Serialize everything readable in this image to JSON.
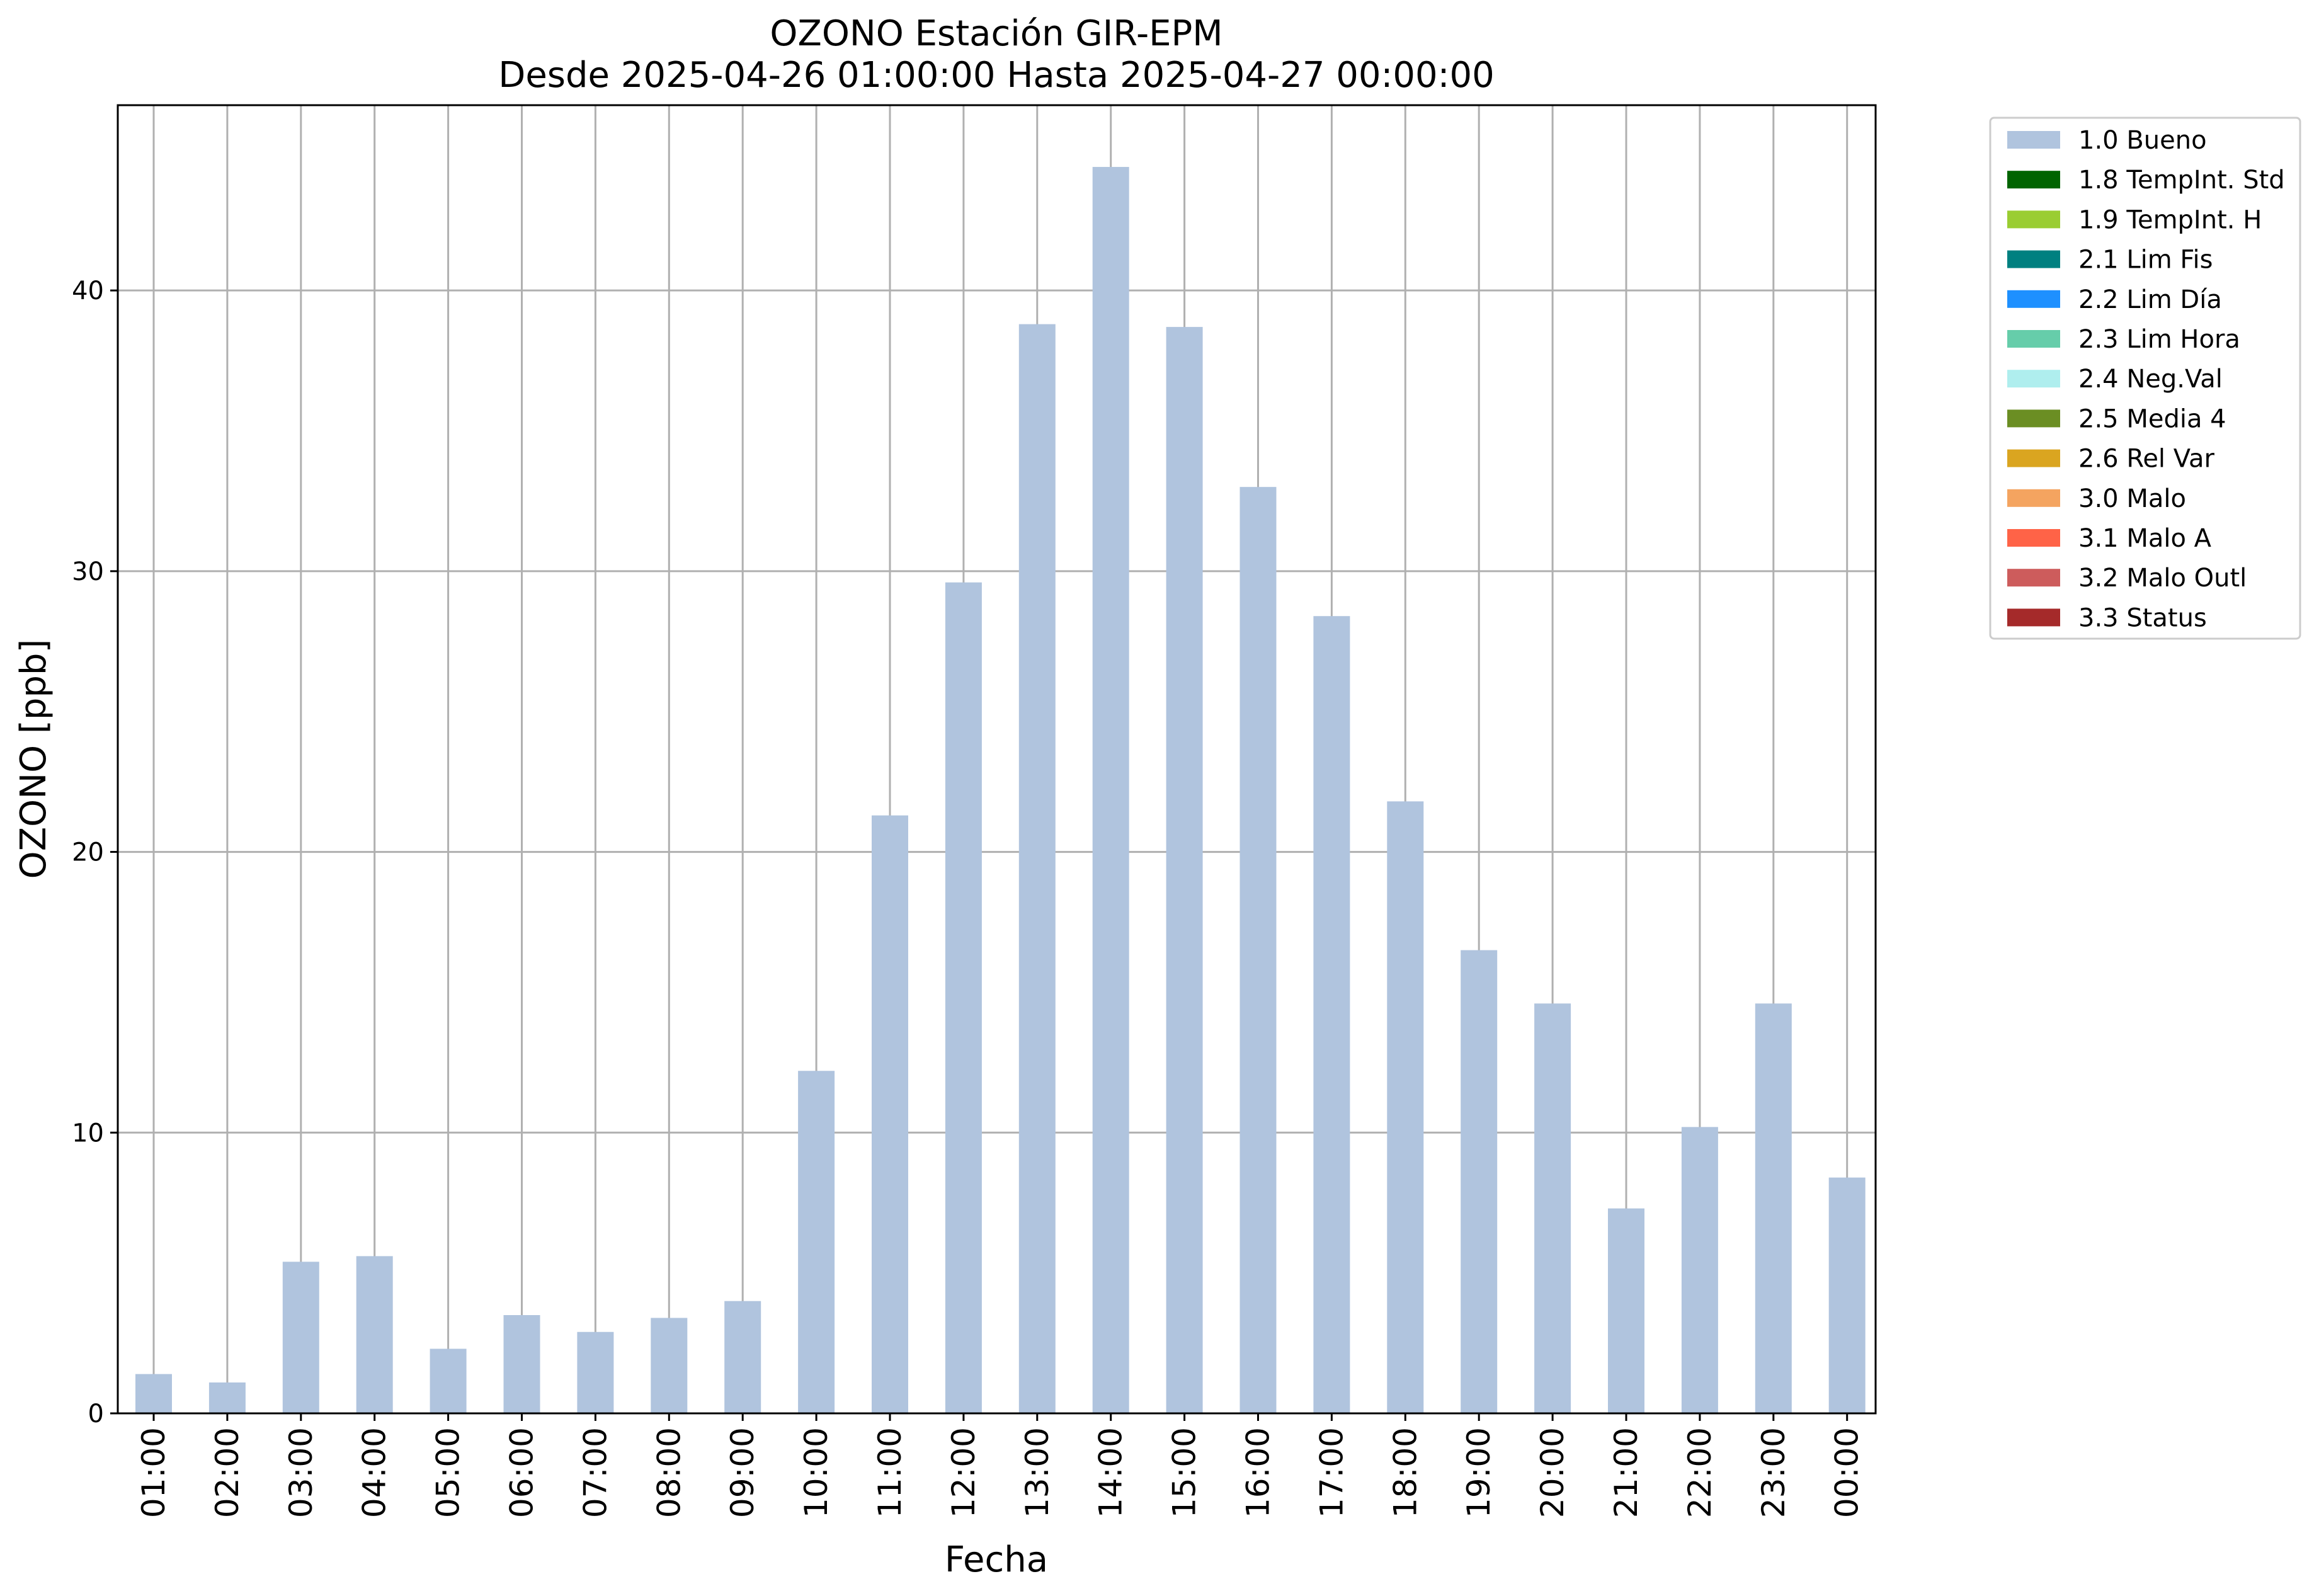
{
  "chart_data": {
    "type": "bar",
    "title": "OZONO Estación GIR-EPM",
    "subtitle": "Desde 2025-04-26 01:00:00 Hasta 2025-04-27 00:00:00",
    "xlabel": "Fecha",
    "ylabel": "OZONO [ppb]",
    "ylim": [
      0,
      46.6
    ],
    "yticks": [
      0,
      10,
      20,
      30,
      40
    ],
    "grid": true,
    "legend_placement": "outside-top-right",
    "categories": [
      "01:00",
      "02:00",
      "03:00",
      "04:00",
      "05:00",
      "06:00",
      "07:00",
      "08:00",
      "09:00",
      "10:00",
      "11:00",
      "12:00",
      "13:00",
      "14:00",
      "15:00",
      "16:00",
      "17:00",
      "18:00",
      "19:00",
      "20:00",
      "21:00",
      "22:00",
      "23:00",
      "00:00"
    ],
    "series": [
      {
        "name": "1.0 Bueno",
        "color": "#b0c4de",
        "values": [
          1.4,
          1.1,
          5.4,
          5.6,
          2.3,
          3.5,
          2.9,
          3.4,
          4.0,
          12.2,
          21.3,
          29.6,
          38.8,
          44.4,
          38.7,
          33.0,
          28.4,
          21.8,
          16.5,
          14.6,
          7.3,
          10.2,
          14.6,
          8.4
        ]
      }
    ],
    "legend": [
      {
        "label": "1.0 Bueno",
        "color": "#b0c4de"
      },
      {
        "label": "1.8 TempInt. Std",
        "color": "#006400"
      },
      {
        "label": "1.9 TempInt. H",
        "color": "#9acd32"
      },
      {
        "label": "2.1 Lim Fis",
        "color": "#008080"
      },
      {
        "label": "2.2 Lim Día",
        "color": "#1e90ff"
      },
      {
        "label": "2.3 Lim Hora",
        "color": "#66cdaa"
      },
      {
        "label": "2.4 Neg.Val",
        "color": "#afeeee"
      },
      {
        "label": "2.5 Media 4",
        "color": "#6b8e23"
      },
      {
        "label": "2.6 Rel Var",
        "color": "#daa520"
      },
      {
        "label": "3.0 Malo",
        "color": "#f4a460"
      },
      {
        "label": "3.1 Malo A",
        "color": "#ff6347"
      },
      {
        "label": "3.2 Malo Outl",
        "color": "#cd5c5c"
      },
      {
        "label": "3.3 Status",
        "color": "#a52a2a"
      }
    ]
  }
}
